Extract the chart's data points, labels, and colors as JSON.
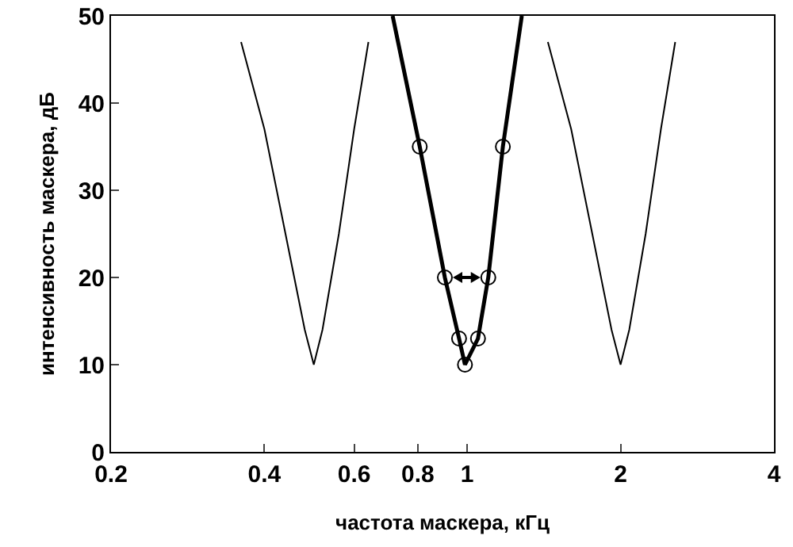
{
  "chart_data": {
    "type": "line",
    "xlabel": "частота маскера, кГц",
    "ylabel": "интенсивность маскера, дБ",
    "log": "x",
    "grid": false,
    "xlim": [
      0.2,
      4
    ],
    "ylim": [
      0,
      50
    ],
    "xticks": [
      0.2,
      0.4,
      0.6,
      0.8,
      1,
      2,
      4
    ],
    "yticks": [
      0,
      10,
      20,
      30,
      40,
      50
    ],
    "series": [
      {
        "color": "#000000",
        "x": [
          0.36,
          0.4,
          0.44,
          0.48,
          0.5,
          0.52,
          0.56,
          0.6,
          0.64
        ],
        "values": [
          47,
          37,
          25,
          14,
          10,
          14,
          25,
          37,
          47
        ]
      },
      {
        "color": "#000000",
        "x": [
          0.714,
          0.807,
          0.904,
          0.964,
          0.99,
          1.05,
          1.1,
          1.175,
          1.28
        ],
        "values": [
          50,
          35,
          20,
          13,
          10,
          13,
          20,
          35,
          50
        ]
      },
      {
        "color": "#000000",
        "x": [
          1.44,
          1.6,
          1.76,
          1.92,
          2,
          2.08,
          2.24,
          2.4,
          2.56
        ],
        "values": [
          47,
          37,
          25,
          14,
          10,
          14,
          25,
          37,
          47
        ]
      },
      {
        "type": "scatter",
        "marker": "circle",
        "color": "#000000",
        "x": [
          0.807,
          0.904,
          0.964,
          0.99,
          1.05,
          1.1,
          1.175
        ],
        "values": [
          35,
          20,
          13,
          10,
          13,
          20,
          35
        ]
      }
    ]
  }
}
